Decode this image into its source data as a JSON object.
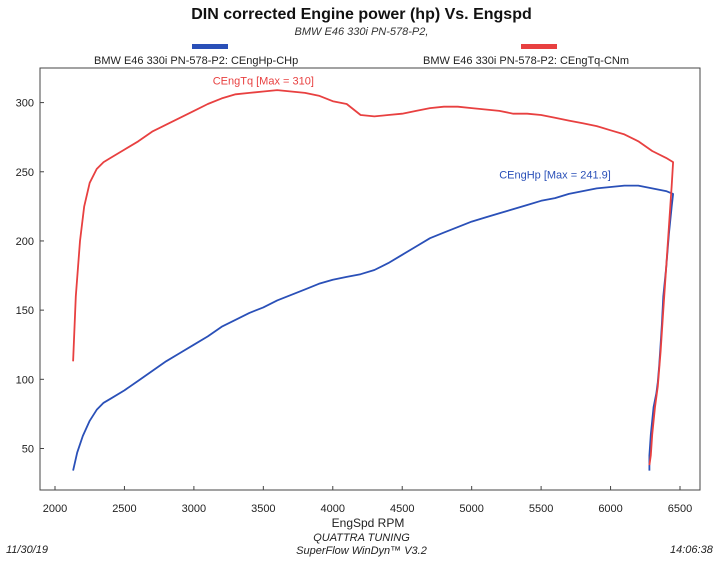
{
  "chart_data": {
    "type": "line",
    "title": "DIN corrected Engine power (hp) Vs. Engspd",
    "subtitle": "BMW E46 330i PN-578-P2,",
    "xlabel": "EngSpd RPM",
    "ylabel": "",
    "xlim": [
      2000,
      6500
    ],
    "ylim": [
      20,
      325
    ],
    "xticks": [
      2000,
      2500,
      3000,
      3500,
      4000,
      4500,
      5000,
      5500,
      6000,
      6500
    ],
    "yticks": [
      50,
      100,
      150,
      200,
      250,
      300
    ],
    "grid": false,
    "legend_position": "top",
    "series": [
      {
        "name": "BMW E46 330i PN-578-P2: CEngHp-CHp",
        "color": "#2a50b8",
        "annotation": "CEngHp [Max = 241.9]",
        "x": [
          2130,
          2160,
          2200,
          2250,
          2300,
          2350,
          2400,
          2500,
          2600,
          2700,
          2800,
          2900,
          3000,
          3100,
          3200,
          3300,
          3400,
          3500,
          3600,
          3700,
          3800,
          3900,
          4000,
          4100,
          4200,
          4300,
          4400,
          4500,
          4600,
          4700,
          4800,
          4900,
          5000,
          5100,
          5200,
          5300,
          5400,
          5500,
          5600,
          5700,
          5800,
          5900,
          6000,
          6100,
          6200,
          6300,
          6400,
          6450,
          6440,
          6420,
          6400,
          6380,
          6370,
          6360,
          6350,
          6340,
          6330,
          6320,
          6310,
          6300,
          6290,
          6280,
          6280
        ],
        "y": [
          34,
          47,
          59,
          70,
          78,
          83,
          86,
          92,
          99,
          106,
          113,
          119,
          125,
          131,
          138,
          143,
          148,
          152,
          157,
          161,
          165,
          169,
          172,
          174,
          176,
          179,
          184,
          190,
          196,
          202,
          206,
          210,
          214,
          217,
          220,
          223,
          226,
          229,
          231,
          234,
          236,
          238,
          239,
          240,
          240,
          238,
          236,
          234,
          225,
          205,
          180,
          160,
          140,
          125,
          110,
          98,
          90,
          85,
          80,
          70,
          60,
          45,
          34
        ]
      },
      {
        "name": "BMW E46 330i PN-578-P2: CEngTq-CNm",
        "color": "#e84040",
        "annotation": "CEngTq [Max = 310]",
        "x": [
          2130,
          2150,
          2180,
          2210,
          2250,
          2300,
          2350,
          2400,
          2500,
          2600,
          2700,
          2800,
          2900,
          3000,
          3100,
          3200,
          3300,
          3400,
          3500,
          3600,
          3700,
          3800,
          3900,
          4000,
          4100,
          4200,
          4300,
          4400,
          4500,
          4600,
          4700,
          4800,
          4900,
          5000,
          5100,
          5200,
          5300,
          5400,
          5500,
          5600,
          5700,
          5800,
          5900,
          6000,
          6100,
          6200,
          6300,
          6400,
          6450,
          6440,
          6420,
          6400,
          6380,
          6360,
          6340,
          6320,
          6300,
          6290,
          6280
        ],
        "y": [
          113,
          160,
          200,
          225,
          242,
          252,
          257,
          260,
          266,
          272,
          279,
          284,
          289,
          294,
          299,
          303,
          306,
          307,
          308,
          309,
          308,
          307,
          305,
          301,
          299,
          291,
          290,
          291,
          292,
          294,
          296,
          297,
          297,
          296,
          295,
          294,
          292,
          292,
          291,
          289,
          287,
          285,
          283,
          280,
          277,
          272,
          265,
          260,
          257,
          240,
          210,
          180,
          150,
          120,
          95,
          80,
          60,
          45,
          38
        ]
      }
    ]
  },
  "footer": {
    "date": "11/30/19",
    "company": "QUATTRA TUNING",
    "software": "SuperFlow WinDyn™ V3.2",
    "time": "14:06:38"
  }
}
